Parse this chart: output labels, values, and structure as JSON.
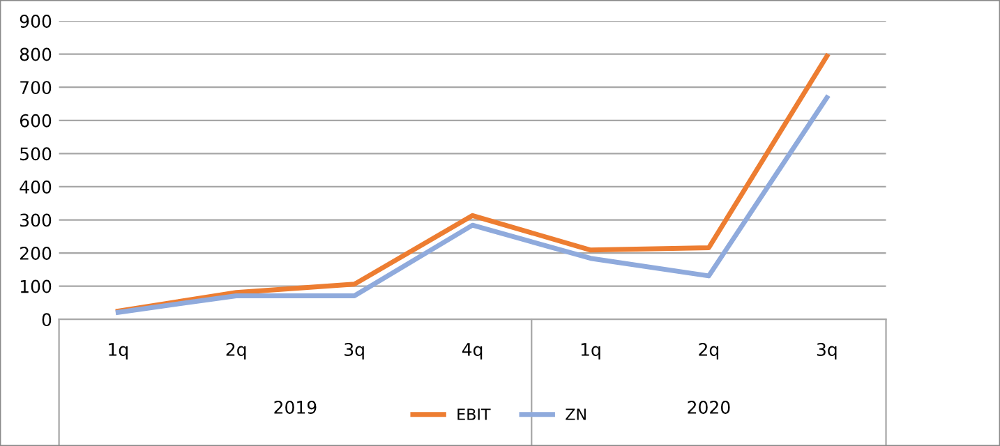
{
  "chart_data": {
    "type": "line",
    "categories": [
      "1q",
      "2q",
      "3q",
      "4q",
      "1q",
      "2q",
      "3q"
    ],
    "annotations": [
      "2019",
      "2020"
    ],
    "series": [
      {
        "name": "EBIT",
        "color": "#ed7d31",
        "values": [
          25,
          81,
          106,
          313,
          209,
          216,
          794
        ]
      },
      {
        "name": "ZN",
        "color": "#8faadc",
        "values": [
          21,
          71,
          71,
          284,
          184,
          131,
          669
        ]
      }
    ],
    "ylim": [
      0,
      900
    ],
    "yticks": [
      0,
      100,
      200,
      300,
      400,
      500,
      600,
      700,
      800,
      900
    ],
    "grid": "y",
    "legend": "bottom",
    "marker": "none",
    "line_style": "solid"
  }
}
